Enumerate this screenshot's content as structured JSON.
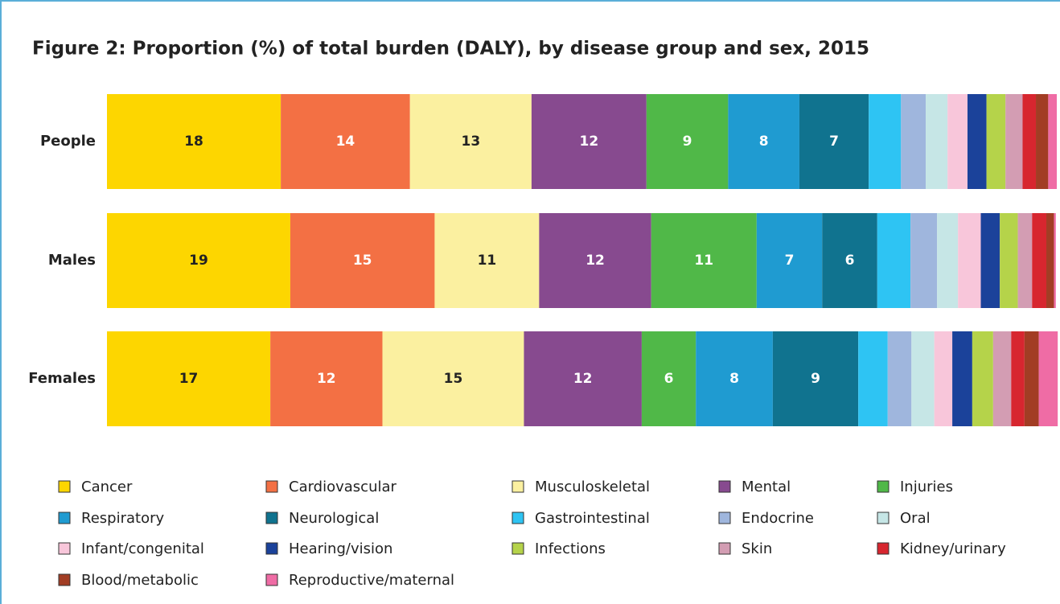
{
  "chart_data": {
    "type": "stacked-bar-horizontal",
    "title": "Figure 2: Proportion (%) of total burden (DALY), by disease group and sex, 2015",
    "categories": [
      "People",
      "Males",
      "Females"
    ],
    "xlim": [
      0,
      100
    ],
    "series": [
      {
        "name": "Cancer",
        "color": "#fdd600",
        "values": [
          18.3,
          19.3,
          17.2
        ],
        "value_labels": [
          "18",
          "19",
          "17"
        ]
      },
      {
        "name": "Cardiovascular",
        "color": "#f37044",
        "values": [
          13.6,
          15.2,
          11.8
        ],
        "value_labels": [
          "14",
          "15",
          "12"
        ]
      },
      {
        "name": "Musculoskeletal",
        "color": "#fbf0a0",
        "values": [
          12.8,
          11.0,
          14.9
        ],
        "value_labels": [
          "13",
          "11",
          "15"
        ]
      },
      {
        "name": "Mental",
        "color": "#874a8f",
        "values": [
          12.1,
          11.8,
          12.4
        ],
        "value_labels": [
          "12",
          "12",
          "12"
        ]
      },
      {
        "name": "Injuries",
        "color": "#50b848",
        "values": [
          8.6,
          11.1,
          5.7
        ],
        "value_labels": [
          "9",
          "11",
          "6"
        ]
      },
      {
        "name": "Respiratory",
        "color": "#1f9bd1",
        "values": [
          7.5,
          6.9,
          8.1
        ],
        "value_labels": [
          "8",
          "7",
          "8"
        ]
      },
      {
        "name": "Neurological",
        "color": "#10738f",
        "values": [
          7.3,
          5.8,
          9.0
        ],
        "value_labels": [
          "7",
          "6",
          "9"
        ]
      },
      {
        "name": "Gastrointestinal",
        "color": "#2ec4f3",
        "values": [
          3.4,
          3.5,
          3.1
        ]
      },
      {
        "name": "Endocrine",
        "color": "#9fb6dd",
        "values": [
          2.6,
          2.8,
          2.5
        ]
      },
      {
        "name": "Oral",
        "color": "#c6e6e6",
        "values": [
          2.3,
          2.2,
          2.4
        ]
      },
      {
        "name": "Infant/congenital",
        "color": "#f8c6da",
        "values": [
          2.1,
          2.4,
          1.9
        ]
      },
      {
        "name": "Hearing/vision",
        "color": "#1b429a",
        "values": [
          2.0,
          2.0,
          2.1
        ]
      },
      {
        "name": "Infections",
        "color": "#b5d34a",
        "values": [
          2.0,
          1.9,
          2.2
        ]
      },
      {
        "name": "Skin",
        "color": "#d39db3",
        "values": [
          1.8,
          1.5,
          1.9
        ]
      },
      {
        "name": "Kidney/urinary",
        "color": "#d7262f",
        "values": [
          1.4,
          1.5,
          1.4
        ]
      },
      {
        "name": "Blood/metabolic",
        "color": "#a23d24",
        "values": [
          1.3,
          0.8,
          1.5
        ]
      },
      {
        "name": "Reproductive/maternal",
        "color": "#ef6ca5",
        "values": [
          0.9,
          0.2,
          2.0
        ]
      }
    ]
  }
}
